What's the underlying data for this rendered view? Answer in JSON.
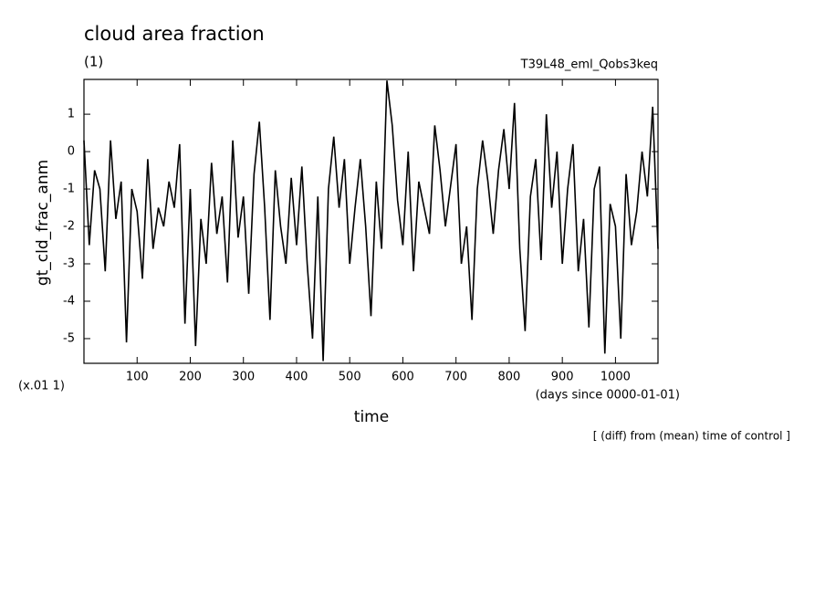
{
  "chart_data": {
    "type": "line",
    "title": "cloud area fraction",
    "subtitle": "(1)",
    "experiment": "T39L48_eml_Qobs3keq",
    "x_label": "time",
    "x_unit": "(days since 0000-01-01)",
    "y_label": "gt_cld_frac_anm",
    "y_scale_note": "(x.01 1)",
    "note": "[ (diff) from (mean) time of control ]",
    "xlim": [
      0,
      1080
    ],
    "xticks": [
      100,
      200,
      300,
      400,
      500,
      600,
      700,
      800,
      900,
      1000
    ],
    "ylim": [
      -5.66,
      1.93
    ],
    "yticks": [
      -5,
      -4,
      -3,
      -2,
      -1,
      0,
      1
    ],
    "grid": false,
    "x": [
      0,
      10,
      20,
      30,
      40,
      50,
      60,
      70,
      80,
      90,
      100,
      110,
      120,
      130,
      140,
      150,
      160,
      170,
      180,
      190,
      200,
      210,
      220,
      230,
      240,
      250,
      260,
      270,
      280,
      290,
      300,
      310,
      320,
      330,
      340,
      350,
      360,
      370,
      380,
      390,
      400,
      410,
      420,
      430,
      440,
      450,
      460,
      470,
      480,
      490,
      500,
      510,
      520,
      530,
      540,
      550,
      560,
      570,
      580,
      590,
      600,
      610,
      620,
      630,
      640,
      650,
      660,
      670,
      680,
      690,
      700,
      710,
      720,
      730,
      740,
      750,
      760,
      770,
      780,
      790,
      800,
      810,
      820,
      830,
      840,
      850,
      860,
      870,
      880,
      890,
      900,
      910,
      920,
      930,
      940,
      950,
      960,
      970,
      980,
      990,
      1000,
      1010,
      1020,
      1030,
      1040,
      1050,
      1060,
      1070,
      1080
    ],
    "series": [
      {
        "color": "#000000",
        "values": [
          0.3,
          -2.5,
          -0.5,
          -1.0,
          -3.2,
          0.3,
          -1.8,
          -0.8,
          -5.1,
          -1.0,
          -1.6,
          -3.4,
          -0.2,
          -2.6,
          -1.5,
          -2.0,
          -0.8,
          -1.5,
          0.2,
          -4.6,
          -1.0,
          -5.2,
          -1.8,
          -3.0,
          -0.3,
          -2.2,
          -1.2,
          -3.5,
          0.3,
          -2.3,
          -1.2,
          -3.8,
          -0.6,
          0.8,
          -1.5,
          -4.5,
          -0.5,
          -2.0,
          -3.0,
          -0.7,
          -2.5,
          -0.4,
          -3.0,
          -5.0,
          -1.2,
          -5.6,
          -1.0,
          0.4,
          -1.5,
          -0.2,
          -3.0,
          -1.5,
          -0.2,
          -2.0,
          -4.4,
          -0.8,
          -2.6,
          1.9,
          0.7,
          -1.3,
          -2.5,
          0.0,
          -3.2,
          -0.8,
          -1.5,
          -2.2,
          0.7,
          -0.5,
          -2.0,
          -0.9,
          0.2,
          -3.0,
          -2.0,
          -4.5,
          -1.0,
          0.3,
          -0.8,
          -2.2,
          -0.5,
          0.6,
          -1.0,
          1.3,
          -2.6,
          -4.8,
          -1.2,
          -0.2,
          -2.9,
          1.0,
          -1.5,
          0.0,
          -3.0,
          -1.0,
          0.2,
          -3.2,
          -1.8,
          -4.7,
          -1.0,
          -0.4,
          -5.4,
          -1.4,
          -2.0,
          -5.0,
          -0.6,
          -2.5,
          -1.6,
          0.0,
          -1.2,
          1.2,
          -2.6
        ]
      }
    ]
  }
}
